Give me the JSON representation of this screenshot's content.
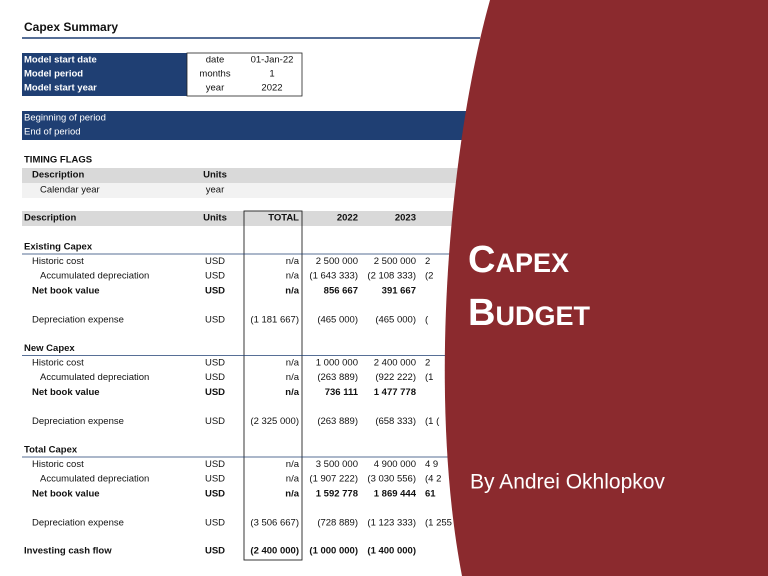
{
  "title": "Capex Summary",
  "model": {
    "rows": [
      [
        "Model start date",
        "date",
        "01-Jan-22"
      ],
      [
        "Model period",
        "months",
        "1"
      ],
      [
        "Model start year",
        "year",
        "2022"
      ]
    ]
  },
  "period": [
    "Beginning of period",
    "End of period"
  ],
  "timing": {
    "title": "TIMING FLAGS",
    "header": [
      "Description",
      "Units"
    ],
    "rows": [
      [
        "Calendar year",
        "year"
      ]
    ]
  },
  "table": {
    "header": [
      "Description",
      "Units",
      "TOTAL",
      "2022",
      "2023"
    ],
    "sections": [
      {
        "title": "Existing Capex",
        "rows": [
          [
            "Historic cost",
            "USD",
            "n/a",
            "2 500 000",
            "2 500 000",
            "2"
          ],
          [
            "Accumulated depreciation",
            "USD",
            "n/a",
            "(1 643 333)",
            "(2 108 333)",
            "(2"
          ],
          [
            "Net book value",
            "USD",
            "n/a",
            "856 667",
            "391 667"
          ],
          [
            "Depreciation expense",
            "USD",
            "(1 181 667)",
            "(465 000)",
            "(465 000)",
            "("
          ]
        ]
      },
      {
        "title": "New Capex",
        "rows": [
          [
            "Historic cost",
            "USD",
            "n/a",
            "1 000 000",
            "2 400 000",
            "2"
          ],
          [
            "Accumulated depreciation",
            "USD",
            "n/a",
            "(263 889)",
            "(922 222)",
            "(1"
          ],
          [
            "Net book value",
            "USD",
            "n/a",
            "736 111",
            "1 477 778"
          ],
          [
            "Depreciation expense",
            "USD",
            "(2 325 000)",
            "(263 889)",
            "(658 333)",
            "(1 ("
          ]
        ]
      },
      {
        "title": "Total Capex",
        "rows": [
          [
            "Historic cost",
            "USD",
            "n/a",
            "3 500 000",
            "4 900 000",
            "4 9"
          ],
          [
            "Accumulated depreciation",
            "USD",
            "n/a",
            "(1 907 222)",
            "(3 030 556)",
            "(4 2"
          ],
          [
            "Net book value",
            "USD",
            "n/a",
            "1 592 778",
            "1 869 444",
            "61"
          ],
          [
            "Depreciation expense",
            "USD",
            "(3 506 667)",
            "(728 889)",
            "(1 123 333)",
            "(1 255"
          ]
        ]
      }
    ],
    "investing": [
      "Investing cash flow",
      "USD",
      "(2 400 000)",
      "(1 000 000)",
      "(1 400 000)"
    ]
  },
  "overlay": {
    "title_lines": [
      "Capex",
      "Budget"
    ],
    "author": "By Andrei Okhlopkov"
  }
}
